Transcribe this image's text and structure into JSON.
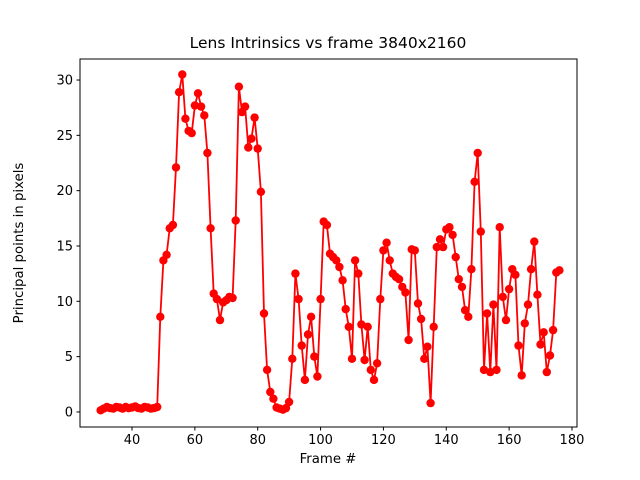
{
  "window": {
    "background": "#ffffff"
  },
  "chart_data": {
    "type": "line",
    "title": "Lens Intrinsics vs frame 3840x2160",
    "xlabel": "Frame #",
    "ylabel": "Principal points in pixels",
    "line_color": "#ff0000",
    "marker": "circle",
    "marker_color": "#ff0000",
    "legend": "none",
    "grid": false,
    "xlim": [
      23.45,
      181.6
    ],
    "ylim": [
      -1.36,
      31.9
    ],
    "x_ticks": [
      40,
      60,
      80,
      100,
      120,
      140,
      160,
      180
    ],
    "y_ticks": [
      0,
      5,
      10,
      15,
      20,
      25,
      30
    ],
    "x": [
      30,
      31,
      32,
      33,
      34,
      35,
      36,
      37,
      38,
      39,
      40,
      41,
      42,
      43,
      44,
      45,
      46,
      47,
      48,
      49,
      50,
      51,
      52,
      53,
      54,
      55,
      56,
      57,
      58,
      59,
      60,
      61,
      62,
      63,
      64,
      65,
      66,
      67,
      68,
      69,
      70,
      71,
      72,
      73,
      74,
      75,
      76,
      77,
      78,
      79,
      80,
      81,
      82,
      83,
      84,
      85,
      86,
      87,
      88,
      89,
      90,
      91,
      92,
      93,
      94,
      95,
      96,
      97,
      98,
      99,
      100,
      101,
      102,
      103,
      104,
      105,
      106,
      107,
      108,
      109,
      110,
      111,
      112,
      113,
      114,
      115,
      116,
      117,
      118,
      119,
      120,
      121,
      122,
      123,
      124,
      125,
      126,
      127,
      128,
      129,
      130,
      131,
      132,
      133,
      134,
      135,
      136,
      137,
      138,
      139,
      140,
      141,
      142,
      143,
      144,
      145,
      146,
      147,
      148,
      149,
      150,
      151,
      152,
      153,
      154,
      155,
      156,
      157,
      158,
      159,
      160,
      161,
      162,
      163,
      164,
      165,
      166,
      167,
      168,
      169,
      170,
      171,
      172,
      173,
      174,
      175,
      176
    ],
    "y": [
      0.15,
      0.3,
      0.45,
      0.35,
      0.3,
      0.45,
      0.4,
      0.3,
      0.45,
      0.35,
      0.4,
      0.5,
      0.35,
      0.3,
      0.45,
      0.4,
      0.3,
      0.35,
      0.45,
      8.6,
      13.7,
      14.2,
      16.6,
      16.9,
      22.1,
      28.9,
      30.5,
      26.5,
      25.4,
      25.2,
      27.7,
      28.8,
      27.6,
      26.8,
      23.4,
      16.6,
      10.7,
      10.2,
      8.3,
      9.9,
      10.1,
      10.4,
      10.3,
      17.3,
      29.4,
      27.1,
      27.6,
      23.9,
      24.7,
      26.6,
      23.8,
      19.9,
      8.9,
      3.8,
      1.8,
      1.2,
      0.4,
      0.3,
      0.2,
      0.35,
      0.9,
      4.8,
      12.5,
      10.2,
      6.0,
      2.9,
      7.0,
      8.6,
      5.0,
      3.2,
      10.2,
      17.2,
      16.9,
      14.3,
      14.0,
      13.7,
      13.1,
      11.9,
      9.3,
      7.7,
      4.8,
      13.7,
      12.5,
      7.9,
      4.7,
      7.7,
      3.8,
      2.9,
      4.4,
      10.2,
      14.6,
      15.3,
      13.7,
      12.5,
      12.2,
      12.0,
      11.3,
      10.8,
      6.5,
      14.7,
      14.6,
      9.8,
      8.4,
      4.8,
      5.9,
      0.8,
      7.7,
      14.9,
      15.6,
      14.9,
      16.5,
      16.7,
      16.0,
      14.0,
      12.0,
      11.3,
      9.2,
      8.6,
      12.9,
      20.8,
      23.4,
      16.3,
      3.8,
      8.9,
      3.6,
      9.7,
      3.8,
      16.7,
      10.4,
      8.3,
      11.1,
      12.9,
      12.4,
      6.0,
      3.3,
      8.0,
      9.7,
      12.9,
      15.4,
      10.6,
      6.1,
      7.2,
      3.6,
      5.1,
      7.4,
      12.6,
      12.8
    ]
  }
}
